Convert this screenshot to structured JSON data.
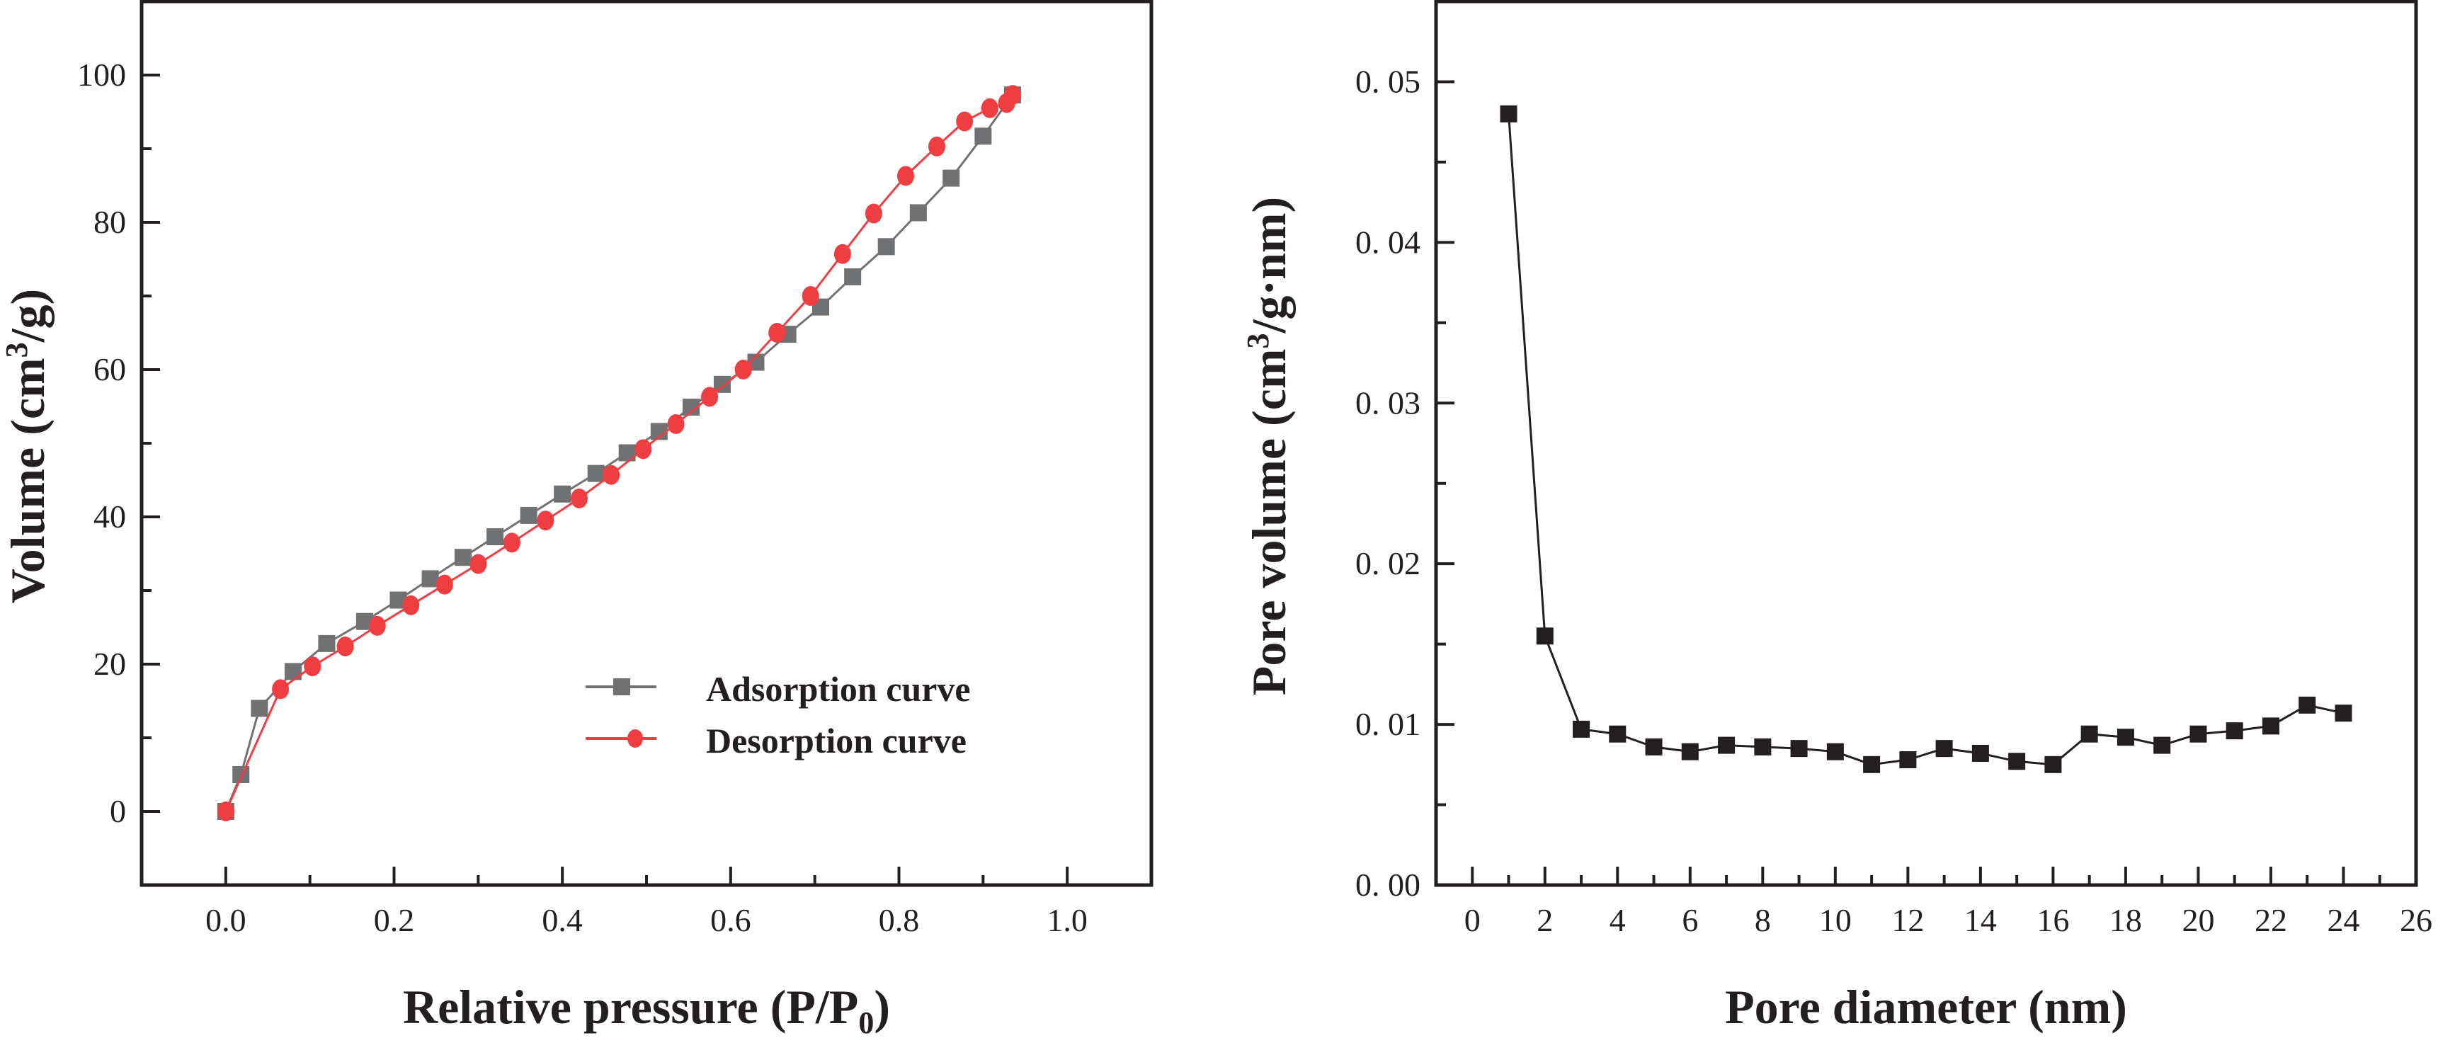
{
  "chart_data": [
    {
      "type": "line",
      "title": "",
      "xlabel": "Relative pressure (P/P",
      "xlabel_sub": "0",
      "xlabel_end": ")",
      "ylabel": "Volume (cm",
      "ylabel_sup": "3",
      "ylabel_end": "/g)",
      "xlim": [
        -0.1,
        1.1
      ],
      "ylim": [
        -10,
        110
      ],
      "xticks": [
        0.0,
        0.2,
        0.4,
        0.6,
        0.8,
        1.0
      ],
      "xtick_labels": [
        "0.0",
        "0.2",
        "0.4",
        "0.6",
        "0.8",
        "1.0"
      ],
      "xminor": [
        -0.1,
        0.1,
        0.3,
        0.5,
        0.7,
        0.9,
        1.1
      ],
      "yticks": [
        0,
        20,
        40,
        60,
        80,
        100
      ],
      "ytick_labels": [
        "0",
        "20",
        "40",
        "60",
        "80",
        "100"
      ],
      "yminor": [
        10,
        30,
        50,
        70,
        90
      ],
      "grid": false,
      "legend_position": "center-right",
      "series": [
        {
          "name": "Adsorption curve",
          "marker": "square",
          "color": "#707173",
          "x": [
            0.0,
            0.018,
            0.04,
            0.08,
            0.12,
            0.165,
            0.205,
            0.243,
            0.282,
            0.32,
            0.36,
            0.4,
            0.44,
            0.477,
            0.515,
            0.553,
            0.59,
            0.63,
            0.668,
            0.707,
            0.745,
            0.785,
            0.823,
            0.862,
            0.9,
            0.935
          ],
          "y": [
            0,
            5,
            14,
            19,
            22.8,
            25.8,
            28.7,
            31.6,
            34.5,
            37.3,
            40.2,
            43.1,
            45.9,
            48.7,
            51.6,
            54.9,
            58,
            61,
            64.8,
            68.5,
            72.6,
            76.7,
            81.3,
            86,
            91.7,
            97.3
          ]
        },
        {
          "name": "Desorption curve",
          "marker": "circle",
          "color": "#ef3e42",
          "x": [
            0.0,
            0.065,
            0.103,
            0.142,
            0.18,
            0.22,
            0.26,
            0.3,
            0.34,
            0.38,
            0.42,
            0.458,
            0.496,
            0.535,
            0.575,
            0.615,
            0.655,
            0.695,
            0.733,
            0.77,
            0.808,
            0.845,
            0.878,
            0.908,
            0.928,
            0.935
          ],
          "y": [
            0,
            16.6,
            19.7,
            22.4,
            25.2,
            28,
            30.8,
            33.6,
            36.5,
            39.5,
            42.5,
            45.7,
            49.2,
            52.6,
            56.3,
            60,
            65,
            70,
            75.7,
            81.2,
            86.3,
            90.3,
            93.7,
            95.5,
            96.2,
            97.3
          ]
        }
      ]
    },
    {
      "type": "line",
      "title": "",
      "xlabel": "Pore diameter (nm)",
      "ylabel": "Pore volume (cm",
      "ylabel_sup": "3",
      "ylabel_end": "/g·nm)",
      "xlim": [
        -1,
        26
      ],
      "ylim": [
        0,
        0.055
      ],
      "xticks": [
        0,
        2,
        4,
        6,
        8,
        10,
        12,
        14,
        16,
        18,
        20,
        22,
        24,
        26
      ],
      "xtick_labels": [
        "0",
        "2",
        "4",
        "6",
        "8",
        "10",
        "12",
        "14",
        "16",
        "18",
        "20",
        "22",
        "24",
        "26"
      ],
      "xminor": [
        1,
        3,
        5,
        7,
        9,
        11,
        13,
        15,
        17,
        19,
        21,
        23,
        25
      ],
      "yticks": [
        0.0,
        0.01,
        0.02,
        0.03,
        0.04,
        0.05
      ],
      "ytick_labels": [
        "0. 00",
        "0. 01",
        "0. 02",
        "0. 03",
        "0. 04",
        "0. 05"
      ],
      "yminor": [
        0.005,
        0.015,
        0.025,
        0.035,
        0.045
      ],
      "grid": false,
      "series": [
        {
          "name": "Pore volume",
          "marker": "square",
          "color": "#231f20",
          "x": [
            1,
            2,
            3,
            4,
            5,
            6,
            7,
            8,
            9,
            10,
            11,
            12,
            13,
            14,
            15,
            16,
            17,
            18,
            19,
            20,
            21,
            22,
            23,
            24
          ],
          "y": [
            0.048,
            0.0155,
            0.0097,
            0.0094,
            0.0086,
            0.0083,
            0.0087,
            0.0086,
            0.0085,
            0.0083,
            0.0075,
            0.0078,
            0.0085,
            0.0082,
            0.0077,
            0.0075,
            0.0094,
            0.0092,
            0.0087,
            0.0094,
            0.0096,
            0.0099,
            0.0112,
            0.0107
          ]
        }
      ]
    }
  ]
}
